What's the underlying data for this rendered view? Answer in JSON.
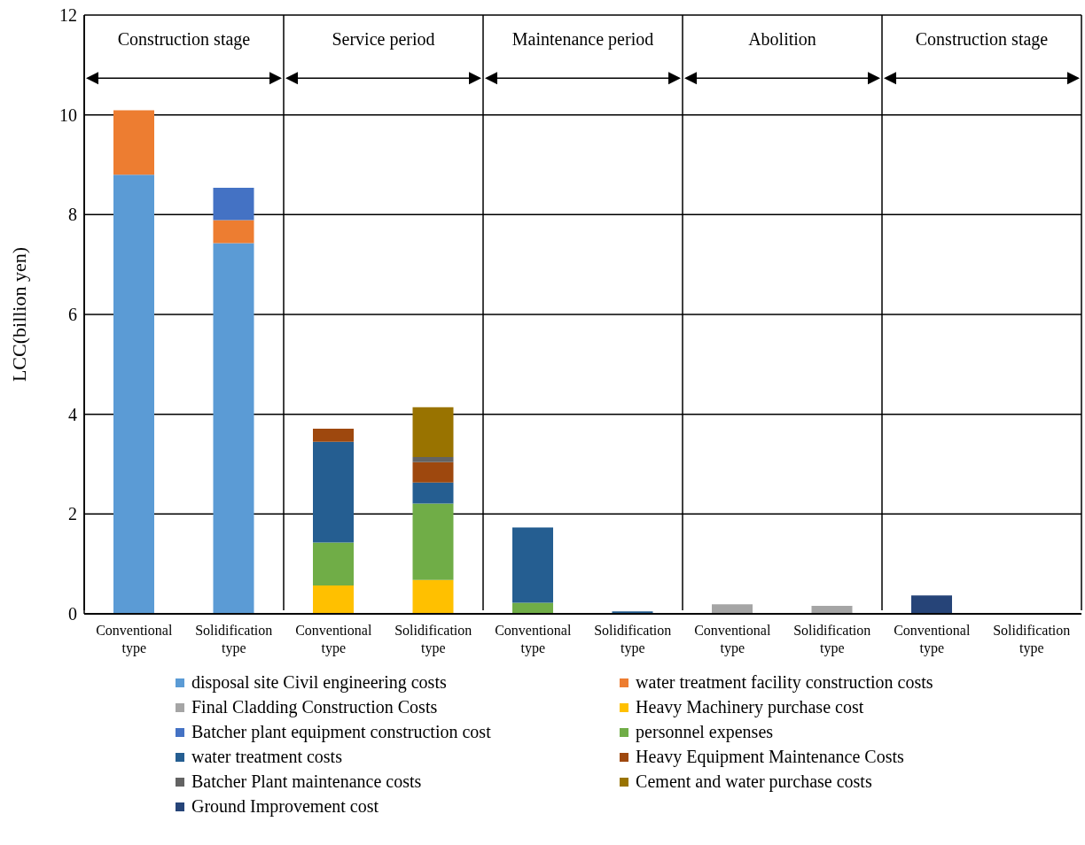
{
  "chart_data": {
    "type": "bar",
    "stacked": true,
    "ylabel": "LCC(billion yen)",
    "ylim": [
      0,
      12
    ],
    "yticks": [
      0,
      2,
      4,
      6,
      8,
      10,
      12
    ],
    "grid": "y",
    "legend": "bottom",
    "annotations": [
      "Construction stage",
      "Service period",
      "Maintenance period",
      "Abolition",
      "Construction stage"
    ],
    "categories": [
      "Conventional type",
      "Solidification type",
      "Conventional type",
      "Solidification type",
      "Conventional type",
      "Solidification type",
      "Conventional type",
      "Solidification type",
      "Conventional type",
      "Solidification type"
    ],
    "series": [
      {
        "name": "disposal site Civil engineering costs",
        "color": "#5b9bd5",
        "values": [
          8.8,
          7.43,
          null,
          null,
          null,
          null,
          null,
          null,
          null,
          null
        ]
      },
      {
        "name": "water treatment facility construction costs",
        "color": "#ed7d31",
        "values": [
          1.29,
          0.46,
          null,
          null,
          null,
          null,
          null,
          null,
          null,
          null
        ]
      },
      {
        "name": "Final Cladding Construction Costs",
        "color": "#a5a5a5",
        "values": [
          null,
          null,
          null,
          null,
          null,
          null,
          0.19,
          0.16,
          null,
          null
        ]
      },
      {
        "name": "Heavy Machinery purchase cost",
        "color": "#ffc000",
        "values": [
          null,
          null,
          0.57,
          0.68,
          null,
          null,
          null,
          null,
          null,
          null
        ]
      },
      {
        "name": "Batcher plant equipment construction cost",
        "color": "#4472c4",
        "values": [
          null,
          0.65,
          null,
          null,
          null,
          null,
          null,
          null,
          null,
          null
        ]
      },
      {
        "name": "personnel expenses",
        "color": "#70ad47",
        "values": [
          null,
          null,
          0.86,
          1.53,
          0.22,
          null,
          null,
          null,
          null,
          null
        ]
      },
      {
        "name": "water treatment costs",
        "color": "#255e91",
        "values": [
          null,
          null,
          2.02,
          0.42,
          1.51,
          0.05,
          null,
          null,
          null,
          null
        ]
      },
      {
        "name": "Heavy Equipment Maintenance Costs",
        "color": "#9e480e",
        "values": [
          null,
          null,
          0.26,
          0.41,
          null,
          null,
          null,
          null,
          null,
          null
        ]
      },
      {
        "name": "Batcher Plant maintenance costs",
        "color": "#636363",
        "values": [
          null,
          null,
          null,
          0.1,
          null,
          null,
          null,
          null,
          null,
          null
        ]
      },
      {
        "name": "Cement and water purchase costs",
        "color": "#997300",
        "values": [
          null,
          null,
          null,
          1.0,
          null,
          null,
          null,
          null,
          null,
          null
        ]
      },
      {
        "name": "Ground Improvement cost",
        "color": "#264478",
        "values": [
          null,
          null,
          null,
          null,
          null,
          null,
          null,
          null,
          0.37,
          null
        ]
      }
    ]
  }
}
